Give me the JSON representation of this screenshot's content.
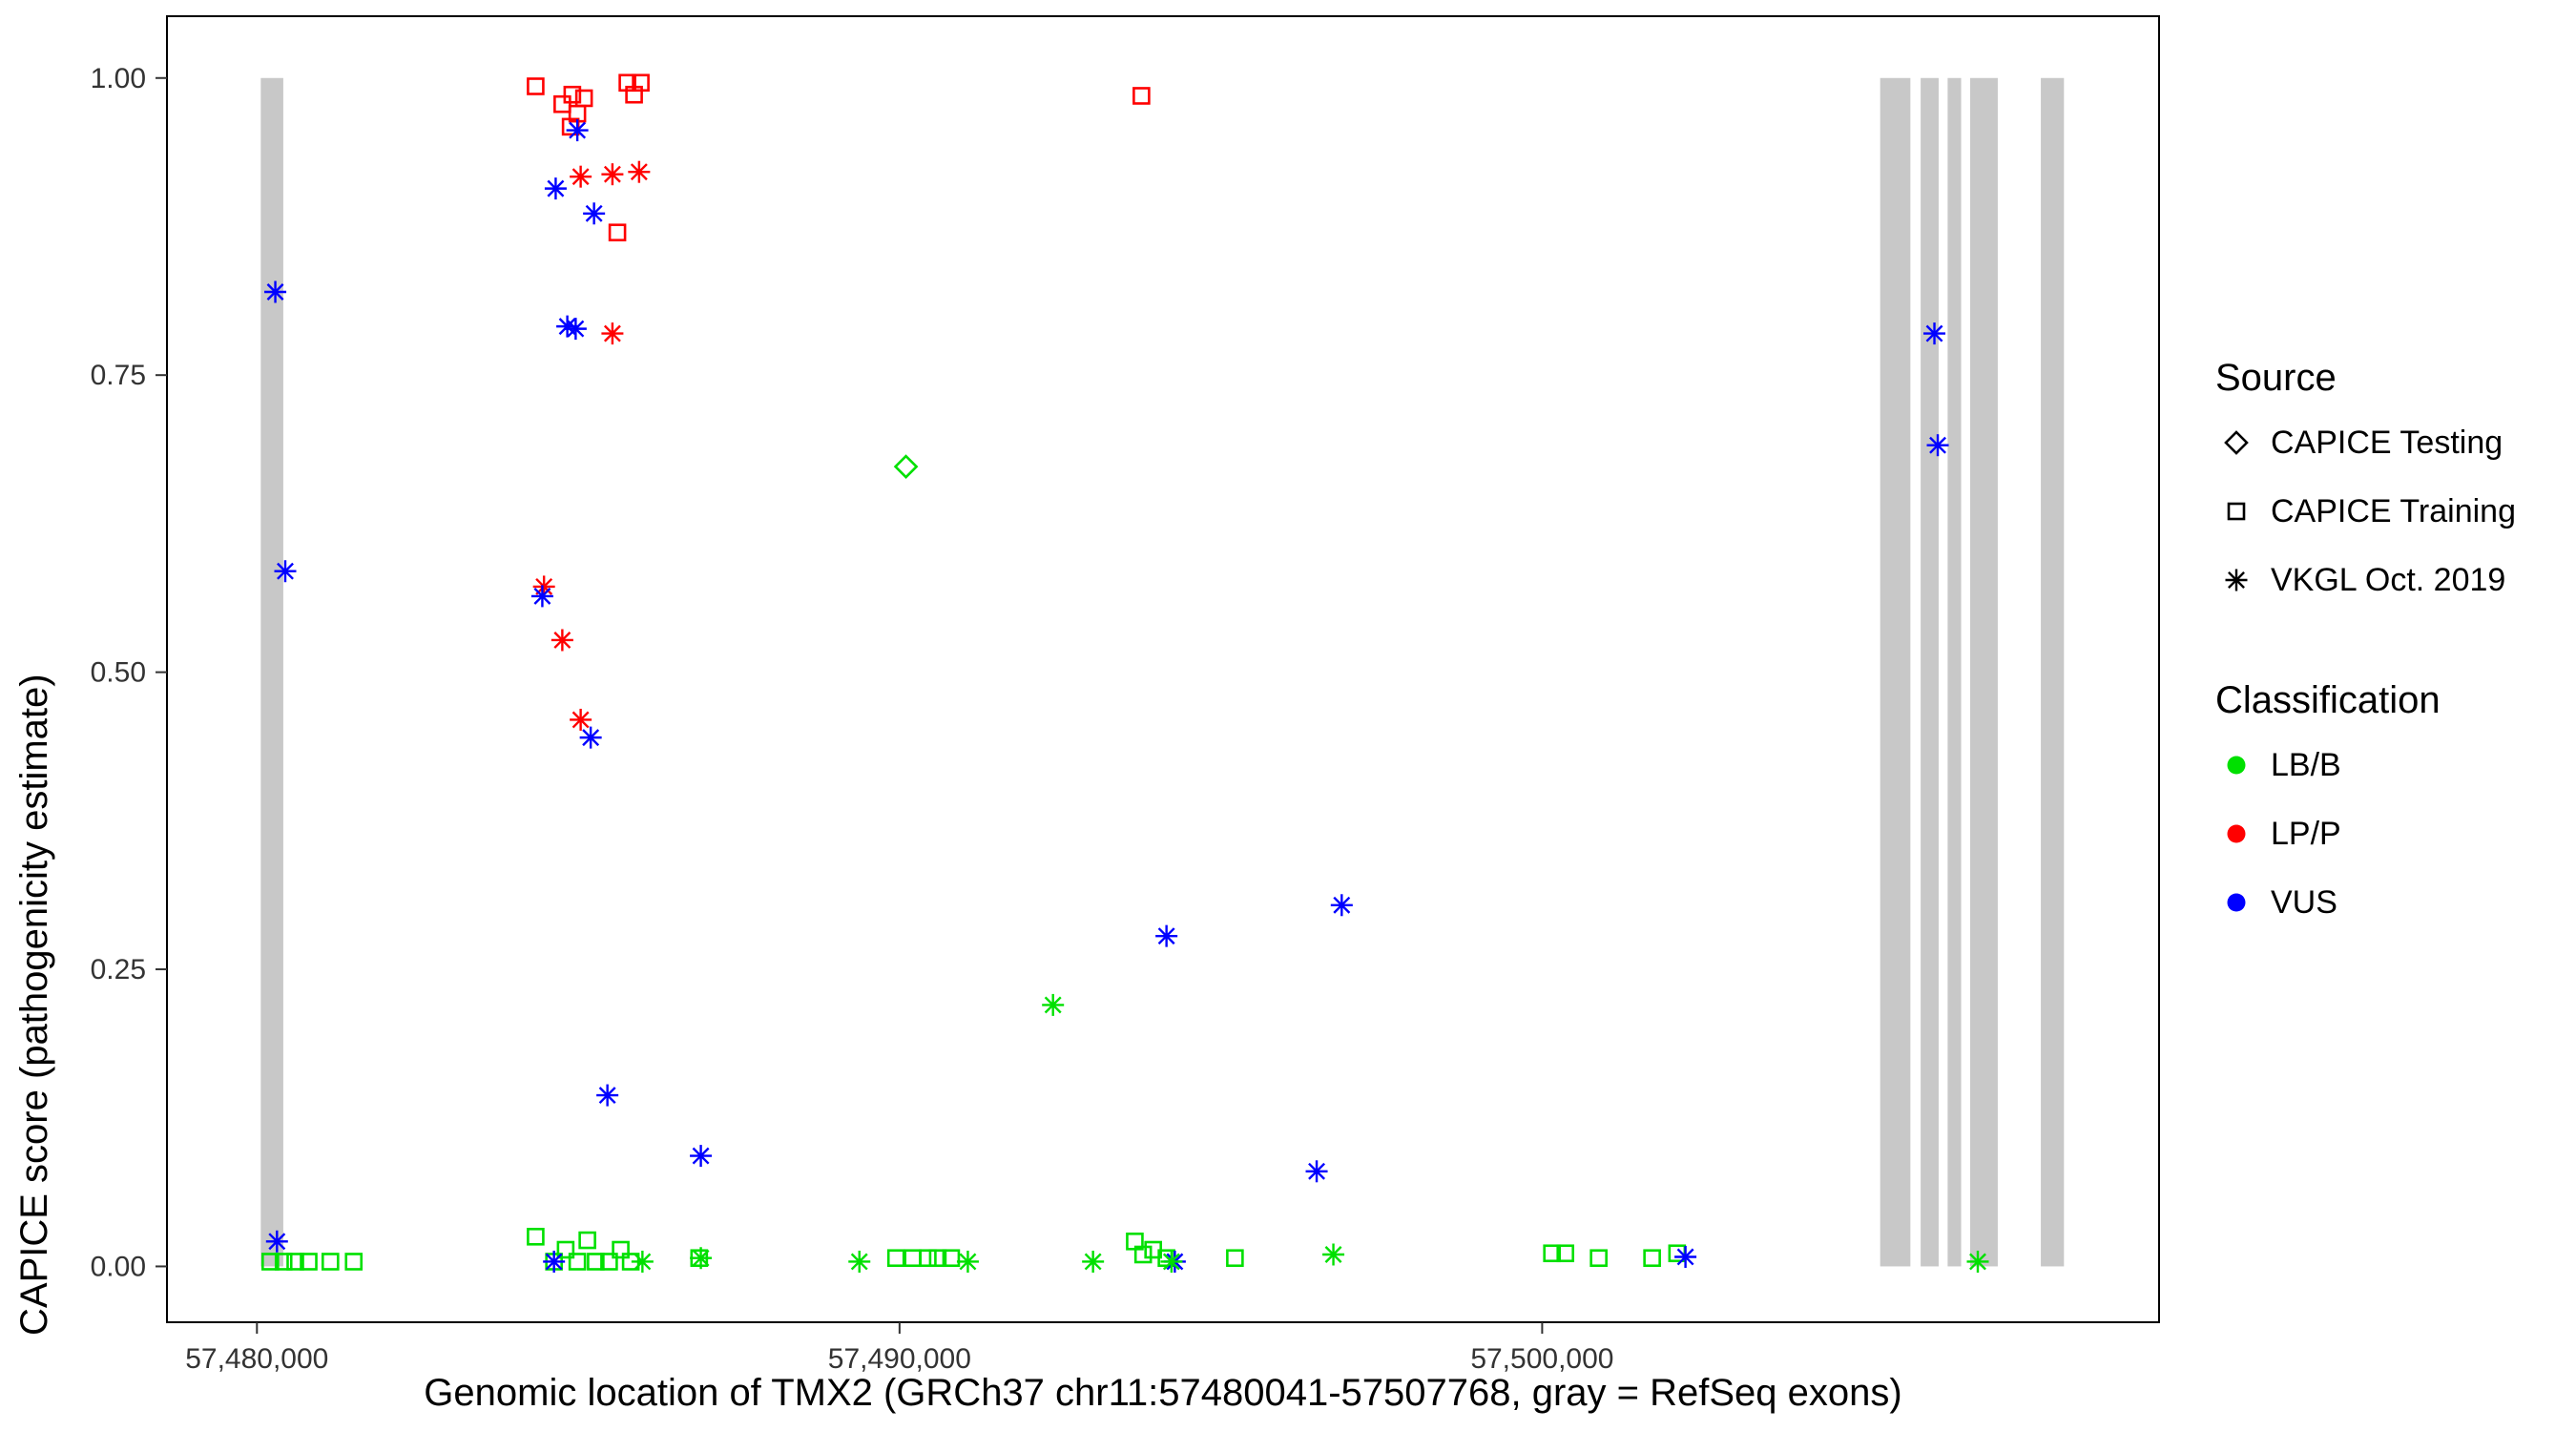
{
  "chart_data": {
    "type": "scatter",
    "title": "",
    "xlabel": "Genomic location of TMX2 (GRCh37 chr11:57480041-57507768, gray = RefSeq exons)",
    "ylabel": "CAPICE score (pathogenicity estimate)",
    "xlim": [
      57478600,
      57509600
    ],
    "ylim": [
      -0.047,
      1.052
    ],
    "x_ticks": [
      {
        "value": 57480000,
        "label": "57,480,000"
      },
      {
        "value": 57490000,
        "label": "57,490,000"
      },
      {
        "value": 57500000,
        "label": "57,500,000"
      }
    ],
    "y_ticks": [
      {
        "value": 0.0,
        "label": "0.00"
      },
      {
        "value": 0.25,
        "label": "0.25"
      },
      {
        "value": 0.5,
        "label": "0.50"
      },
      {
        "value": 0.75,
        "label": "0.75"
      },
      {
        "value": 1.0,
        "label": "1.00"
      }
    ],
    "grid": false,
    "exon_color": "#C8C8C8",
    "exons": [
      [
        57480060,
        57480410
      ],
      [
        57505260,
        57505730
      ],
      [
        57505890,
        57506170
      ],
      [
        57506310,
        57506520
      ],
      [
        57506660,
        57507090
      ],
      [
        57507760,
        57508120
      ]
    ],
    "colors": {
      "LB/B": "#00E000",
      "LP/P": "#FF0000",
      "VUS": "#0000FF"
    },
    "markers": {
      "CAPICE Testing": "diamond",
      "CAPICE Training": "square",
      "VKGL Oct. 2019": "asterisk"
    },
    "series": [
      {
        "source": "CAPICE Testing",
        "classification": "LB/B",
        "points": [
          [
            57490100,
            0.673
          ]
        ]
      },
      {
        "source": "CAPICE Training",
        "classification": "LP/P",
        "points": [
          [
            57484337,
            0.993
          ],
          [
            57484752,
            0.978
          ],
          [
            57484908,
            0.986
          ],
          [
            57484986,
            0.97
          ],
          [
            57485090,
            0.983
          ],
          [
            57484882,
            0.959
          ],
          [
            57485765,
            0.996
          ],
          [
            57485869,
            0.986
          ],
          [
            57485973,
            0.996
          ],
          [
            57485609,
            0.87
          ],
          [
            57493764,
            0.985
          ]
        ]
      },
      {
        "source": "CAPICE Training",
        "classification": "LB/B",
        "points": [
          [
            57480208,
            0.004
          ],
          [
            57480415,
            0.004
          ],
          [
            57480597,
            0.004
          ],
          [
            57480805,
            0.004
          ],
          [
            57481143,
            0.004
          ],
          [
            57481506,
            0.004
          ],
          [
            57484337,
            0.025
          ],
          [
            57484623,
            0.004
          ],
          [
            57484804,
            0.014
          ],
          [
            57484986,
            0.004
          ],
          [
            57485142,
            0.022
          ],
          [
            57485272,
            0.004
          ],
          [
            57485480,
            0.004
          ],
          [
            57485661,
            0.014
          ],
          [
            57485817,
            0.004
          ],
          [
            57486882,
            0.007
          ],
          [
            57489946,
            0.007
          ],
          [
            57490206,
            0.007
          ],
          [
            57490439,
            0.007
          ],
          [
            57490595,
            0.007
          ],
          [
            57490803,
            0.007
          ],
          [
            57493661,
            0.021
          ],
          [
            57493791,
            0.01
          ],
          [
            57493947,
            0.014
          ],
          [
            57494154,
            0.007
          ],
          [
            57495219,
            0.007
          ],
          [
            57500153,
            0.011
          ],
          [
            57500361,
            0.011
          ],
          [
            57500880,
            0.007
          ],
          [
            57501711,
            0.007
          ],
          [
            57502100,
            0.011
          ]
        ]
      },
      {
        "source": "VKGL Oct. 2019",
        "classification": "LP/P",
        "points": [
          [
            57485038,
            0.917
          ],
          [
            57485532,
            0.919
          ],
          [
            57485947,
            0.921
          ],
          [
            57485532,
            0.785
          ],
          [
            57484467,
            0.572
          ],
          [
            57484752,
            0.527
          ],
          [
            57485038,
            0.46
          ]
        ]
      },
      {
        "source": "VKGL Oct. 2019",
        "classification": "VUS",
        "points": [
          [
            57480286,
            0.82
          ],
          [
            57480441,
            0.585
          ],
          [
            57484986,
            0.956
          ],
          [
            57484649,
            0.907
          ],
          [
            57484830,
            0.791
          ],
          [
            57484960,
            0.789
          ],
          [
            57485246,
            0.886
          ],
          [
            57484441,
            0.564
          ],
          [
            57485194,
            0.445
          ],
          [
            57485454,
            0.144
          ],
          [
            57486908,
            0.093
          ],
          [
            57494154,
            0.278
          ],
          [
            57496881,
            0.304
          ],
          [
            57496491,
            0.08
          ],
          [
            57506104,
            0.785
          ],
          [
            57506156,
            0.691
          ],
          [
            57480312,
            0.021
          ],
          [
            57484623,
            0.004
          ],
          [
            57494284,
            0.004
          ],
          [
            57502230,
            0.008
          ]
        ]
      },
      {
        "source": "VKGL Oct. 2019",
        "classification": "LB/B",
        "points": [
          [
            57492388,
            0.22
          ],
          [
            57485999,
            0.004
          ],
          [
            57486908,
            0.007
          ],
          [
            57489375,
            0.004
          ],
          [
            57491063,
            0.004
          ],
          [
            57493011,
            0.004
          ],
          [
            57494232,
            0.004
          ],
          [
            57496751,
            0.01
          ],
          [
            57506779,
            0.004
          ]
        ]
      }
    ],
    "legend": {
      "position": "right",
      "source_title": "Source",
      "source_items": [
        "CAPICE Testing",
        "CAPICE Training",
        "VKGL Oct. 2019"
      ],
      "classification_title": "Classification",
      "classification_items": [
        "LB/B",
        "LP/P",
        "VUS"
      ]
    }
  }
}
